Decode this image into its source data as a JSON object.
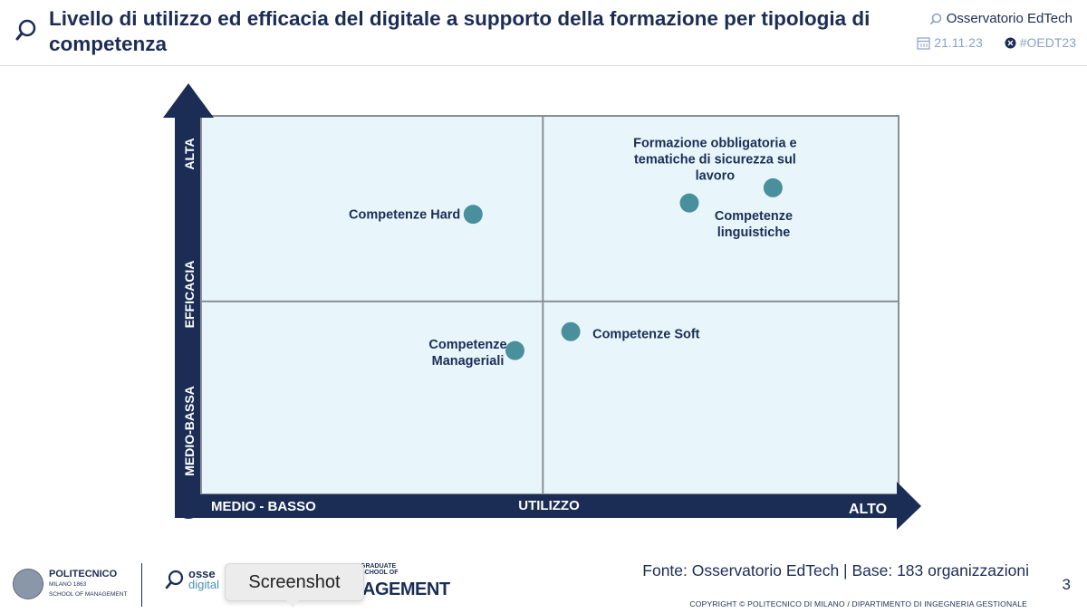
{
  "header": {
    "title": "Livello di utilizzo ed efficacia del digitale a supporto della formazione per tipologia di competenza",
    "brand": "Osservatorio EdTech",
    "date": "21.11.23",
    "hashtag": "#OEDT23"
  },
  "chart_data": {
    "type": "scatter",
    "xlabel": "UTILIZZO",
    "ylabel": "EFFICACIA",
    "x_low_label": "MEDIO - BASSO",
    "x_high_label": "ALTO",
    "y_low_label": "MEDIO-BASSA",
    "y_high_label": "ALTA",
    "xlim": [
      0,
      10
    ],
    "ylim": [
      0,
      10
    ],
    "quadrant_split": {
      "x": 4.9,
      "y": 5.1
    },
    "grid": false,
    "point_color": "#4a8f9c",
    "quadrant_fill": "#e8f6fc",
    "axis_color": "#1b2d55",
    "points": [
      {
        "label": "Formazione obbligatoria e tematiche di sicurezza sul lavoro",
        "x": 8.2,
        "y": 8.1
      },
      {
        "label": "Competenze linguistiche",
        "x": 7.0,
        "y": 7.7
      },
      {
        "label": "Competenze Hard",
        "x": 3.9,
        "y": 7.4
      },
      {
        "label": "Competenze Soft",
        "x": 5.3,
        "y": 4.3
      },
      {
        "label": "Competenze Manageriali",
        "x": 4.5,
        "y": 3.8
      }
    ]
  },
  "footer": {
    "source": "Fonte: Osservatorio EdTech | Base: 183 organizzazioni",
    "page_number": "3",
    "copyright": "COPYRIGHT © POLITECNICO DI MILANO / DIPARTIMENTO DI INGEGNERIA GESTIONALE",
    "polimi_name": "POLITECNICO",
    "polimi_sub1": "MILANO 1863",
    "polimi_sub2": "SCHOOL OF MANAGEMENT",
    "osservatori_name": "osse",
    "osservatori_sub": "digital",
    "gsom_small": "GRADUATE SCHOOL OF",
    "gsom_big": "MANAGEMENT",
    "tooltip": "Screenshot"
  }
}
